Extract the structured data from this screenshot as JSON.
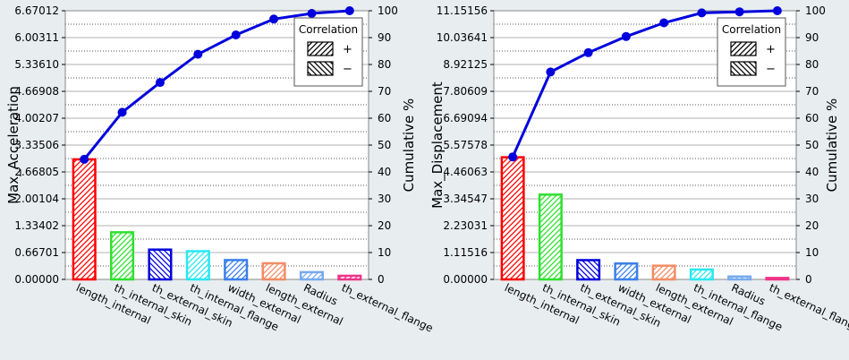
{
  "chart_data": [
    {
      "type": "bar",
      "ylabel": "Max_Acceleration",
      "y2label": "Cumulative %",
      "ylim": [
        0,
        6.67012
      ],
      "y2lim": [
        0,
        100
      ],
      "yticks": [
        "0.00000",
        "0.66701",
        "1.33402",
        "2.00104",
        "2.66805",
        "3.33506",
        "4.00207",
        "4.66908",
        "5.33610",
        "6.00311",
        "6.67012"
      ],
      "y2ticks": [
        "0",
        "10",
        "20",
        "30",
        "40",
        "50",
        "60",
        "70",
        "80",
        "90",
        "100"
      ],
      "categories": [
        "length_internal",
        "th_internal_skin",
        "th_external_skin",
        "th_internal_flange",
        "width_external",
        "length_external",
        "Radius",
        "th_external_flange"
      ],
      "values": [
        2.98,
        1.17,
        0.74,
        0.7,
        0.48,
        0.4,
        0.18,
        0.09
      ],
      "cumulative": [
        44.7,
        62.2,
        73.3,
        83.8,
        91.0,
        96.9,
        99.0,
        100
      ],
      "correlation": [
        "+",
        "+",
        "-",
        "+",
        "+",
        "+",
        "+",
        "+"
      ],
      "colors": [
        "#ff0000",
        "#2ee02e",
        "#0000dd",
        "#27e8f2",
        "#3a7fe8",
        "#f28c64",
        "#77aaee",
        "#ee3388"
      ],
      "legend": {
        "title": "Correlation",
        "items": [
          "+",
          "−"
        ],
        "position": "top-right"
      },
      "line_color": "#0000dd"
    },
    {
      "type": "bar",
      "ylabel": "Max_Displacement",
      "y2label": "Cumulative %",
      "ylim": [
        0,
        11.15156
      ],
      "y2lim": [
        0,
        100
      ],
      "yticks": [
        "0.00000",
        "1.11516",
        "2.23031",
        "3.34547",
        "4.46063",
        "5.57578",
        "6.69094",
        "7.80609",
        "8.92125",
        "10.03641",
        "11.15156"
      ],
      "y2ticks": [
        "0",
        "10",
        "20",
        "30",
        "40",
        "50",
        "60",
        "70",
        "80",
        "90",
        "100"
      ],
      "categories": [
        "length_internal",
        "th_internal_skin",
        "th_external_skin",
        "width_external",
        "length_external",
        "th_internal_flange",
        "Radius",
        "th_external_flange"
      ],
      "values": [
        5.07,
        3.52,
        0.8,
        0.66,
        0.57,
        0.41,
        0.12,
        0.06
      ],
      "cumulative": [
        45.6,
        77.2,
        84.4,
        90.4,
        95.5,
        99.2,
        99.6,
        100
      ],
      "correlation": [
        "+",
        "+",
        "-",
        "+",
        "+",
        "+",
        "+",
        "+"
      ],
      "colors": [
        "#ff0000",
        "#2ee02e",
        "#0000dd",
        "#3a7fe8",
        "#f28c64",
        "#27e8f2",
        "#77aaee",
        "#ee3388"
      ],
      "legend": {
        "title": "Correlation",
        "items": [
          "+",
          "−"
        ],
        "position": "top-right"
      },
      "line_color": "#0000dd"
    }
  ]
}
